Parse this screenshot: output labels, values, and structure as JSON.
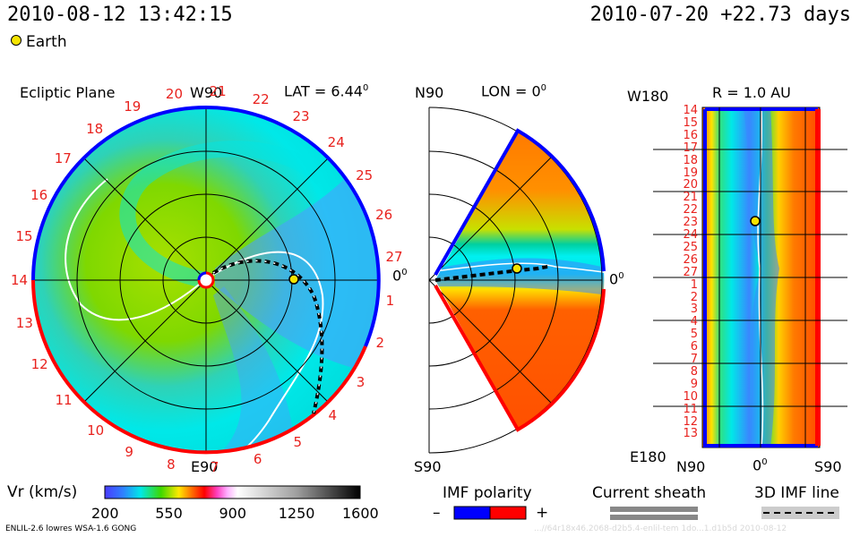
{
  "header": {
    "timestamp": "2010-08-12 13:42:15",
    "run_info": "2010-07-20 +22.73 days",
    "earth_label": "Earth"
  },
  "ecliptic": {
    "title": "Ecliptic Plane",
    "lat_label": "LAT = 6.44",
    "lat_sup": "0",
    "top_label": "W90",
    "bottom_label": "E90",
    "right_label": "0",
    "right_sup": "0",
    "ticks": [
      "1",
      "2",
      "3",
      "4",
      "5",
      "6",
      "7",
      "8",
      "9",
      "10",
      "11",
      "12",
      "13",
      "14",
      "15",
      "16",
      "17",
      "18",
      "19",
      "20",
      "21",
      "22",
      "23",
      "24",
      "25",
      "26",
      "27"
    ]
  },
  "meridional": {
    "top_label": "N90",
    "lon_label": "LON = 0",
    "lon_sup": "0",
    "bottom_label": "S90",
    "right_label": "0",
    "right_sup": "0"
  },
  "sphere": {
    "title": "R = 1.0 AU",
    "top_left": "W180",
    "bottom_left": "E180",
    "x_left": "N90",
    "x_mid": "0",
    "x_mid_sup": "0",
    "x_right": "S90",
    "y_ticks": [
      "14",
      "15",
      "16",
      "17",
      "18",
      "19",
      "20",
      "21",
      "22",
      "23",
      "24",
      "25",
      "26",
      "27",
      "1",
      "2",
      "3",
      "4",
      "5",
      "6",
      "7",
      "8",
      "9",
      "10",
      "11",
      "12",
      "13"
    ]
  },
  "colorbar": {
    "label": "Vr (km/s)",
    "ticks": [
      "200",
      "550",
      "900",
      "1250",
      "1600"
    ]
  },
  "imf_legend": {
    "title": "IMF polarity",
    "minus": "–",
    "plus": "+",
    "minus_color": "#0000ff",
    "plus_color": "#ff0000"
  },
  "sheath_legend": {
    "title": "Current sheath"
  },
  "imf_line_legend": {
    "title": "3D IMF line"
  },
  "footer": {
    "model_info": "ENLIL-2.6 lowres WSA-1.6 GONG",
    "watermark": "...//64r18x46.2068-d2b5.4-enlil-tem 1do...1.d1b5d   2010-08-12"
  },
  "colors": {
    "earth_fill": "#f5e400",
    "polarity_pos": "#ff0000",
    "polarity_neg": "#0000ff",
    "tick_red": "#e8221e"
  }
}
